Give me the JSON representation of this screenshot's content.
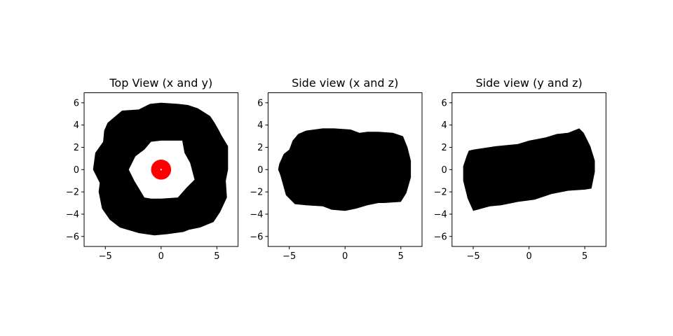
{
  "chart_data": [
    {
      "type": "scatter",
      "title": "Top View (x and y)",
      "xlabel": "",
      "ylabel": "",
      "xlim": [
        -6.9,
        6.9
      ],
      "ylim": [
        -6.9,
        6.9
      ],
      "xticks": [
        -5,
        0,
        5
      ],
      "yticks": [
        -6,
        -4,
        -2,
        0,
        2,
        4,
        6
      ],
      "xtick_labels": [
        "−5",
        "0",
        "5"
      ],
      "ytick_labels": [
        "−6",
        "−4",
        "−2",
        "0",
        "2",
        "4",
        "6"
      ],
      "grid": false,
      "series": [
        {
          "color": "#000000",
          "fill": "ring",
          "outer": [
            [
              0,
              6.0
            ],
            [
              1.5,
              5.9
            ],
            [
              2.4,
              5.8
            ],
            [
              3.3,
              5.5
            ],
            [
              4.4,
              4.8
            ],
            [
              4.8,
              4.2
            ],
            [
              5.2,
              3.5
            ],
            [
              5.4,
              3.1
            ],
            [
              6.0,
              2.1
            ],
            [
              6.0,
              0.0
            ],
            [
              5.8,
              -1.0
            ],
            [
              5.9,
              -2.5
            ],
            [
              5.3,
              -3.8
            ],
            [
              4.7,
              -4.7
            ],
            [
              3.5,
              -5.2
            ],
            [
              2.5,
              -5.4
            ],
            [
              2.0,
              -5.6
            ],
            [
              0.5,
              -5.8
            ],
            [
              -0.6,
              -5.9
            ],
            [
              -2.0,
              -5.7
            ],
            [
              -3.7,
              -5.2
            ],
            [
              -4.6,
              -4.5
            ],
            [
              -5.3,
              -3.5
            ],
            [
              -5.6,
              -2.0
            ],
            [
              -5.5,
              -1.2
            ],
            [
              -6.1,
              0.0
            ],
            [
              -5.9,
              1.5
            ],
            [
              -5.2,
              2.5
            ],
            [
              -5.1,
              3.5
            ],
            [
              -4.8,
              4.2
            ],
            [
              -3.5,
              5.3
            ],
            [
              -2.0,
              5.4
            ],
            [
              -1.0,
              5.9
            ]
          ],
          "inner": [
            [
              0,
              2.6
            ],
            [
              1.2,
              2.6
            ],
            [
              1.9,
              2.6
            ],
            [
              2.1,
              1.5
            ],
            [
              2.6,
              0.6
            ],
            [
              3.0,
              -0.9
            ],
            [
              2.3,
              -1.6
            ],
            [
              1.5,
              -2.5
            ],
            [
              0.0,
              -2.6
            ],
            [
              -0.9,
              -2.6
            ],
            [
              -1.5,
              -2.5
            ],
            [
              -1.8,
              -2.0
            ],
            [
              -2.4,
              -1.0
            ],
            [
              -2.9,
              0.0
            ],
            [
              -2.3,
              1.2
            ],
            [
              -1.5,
              1.8
            ],
            [
              -0.9,
              2.5
            ]
          ]
        },
        {
          "color": "#ff0000",
          "fill": "disc",
          "center": [
            0,
            0
          ],
          "radius": 0.9
        }
      ]
    },
    {
      "type": "scatter",
      "title": "Side view (x and z)",
      "xlabel": "",
      "ylabel": "",
      "xlim": [
        -6.9,
        6.9
      ],
      "ylim": [
        -6.9,
        6.9
      ],
      "xticks": [
        -5,
        0,
        5
      ],
      "yticks": [
        -6,
        -4,
        -2,
        0,
        2,
        4,
        6
      ],
      "xtick_labels": [
        "−5",
        "0",
        "5"
      ],
      "ytick_labels": [
        "−6",
        "−4",
        "−2",
        "0",
        "2",
        "4",
        "6"
      ],
      "grid": false,
      "series": [
        {
          "color": "#000000",
          "fill": "blob",
          "outline": [
            [
              -5.5,
              1.4
            ],
            [
              -5.0,
              1.8
            ],
            [
              -4.7,
              2.6
            ],
            [
              -4.2,
              3.2
            ],
            [
              -3.5,
              3.5
            ],
            [
              -2.0,
              3.7
            ],
            [
              -1.0,
              3.7
            ],
            [
              0.5,
              3.6
            ],
            [
              1.3,
              3.3
            ],
            [
              2.0,
              3.4
            ],
            [
              3.0,
              3.4
            ],
            [
              4.3,
              3.3
            ],
            [
              5.2,
              3.0
            ],
            [
              5.6,
              2.0
            ],
            [
              5.9,
              0.8
            ],
            [
              5.9,
              -0.7
            ],
            [
              5.5,
              -2.1
            ],
            [
              5.0,
              -2.9
            ],
            [
              3.5,
              -3.0
            ],
            [
              3.0,
              -3.0
            ],
            [
              2.0,
              -3.2
            ],
            [
              1.0,
              -3.5
            ],
            [
              0.0,
              -3.7
            ],
            [
              -1.2,
              -3.6
            ],
            [
              -2.0,
              -3.3
            ],
            [
              -3.5,
              -3.2
            ],
            [
              -4.5,
              -3.1
            ],
            [
              -5.3,
              -2.3
            ],
            [
              -5.8,
              -0.5
            ],
            [
              -6.0,
              0.0
            ],
            [
              -5.9,
              0.5
            ]
          ]
        }
      ]
    },
    {
      "type": "scatter",
      "title": "Side view (y and z)",
      "xlabel": "",
      "ylabel": "",
      "xlim": [
        -6.9,
        6.9
      ],
      "ylim": [
        -6.9,
        6.9
      ],
      "xticks": [
        -5,
        0,
        5
      ],
      "yticks": [
        -6,
        -4,
        -2,
        0,
        2,
        4,
        6
      ],
      "xtick_labels": [
        "−5",
        "0",
        "5"
      ],
      "ytick_labels": [
        "−6",
        "−4",
        "−2",
        "0",
        "2",
        "4",
        "6"
      ],
      "grid": false,
      "series": [
        {
          "color": "#000000",
          "fill": "blob",
          "outline": [
            [
              -5.4,
              1.7
            ],
            [
              -5.0,
              1.8
            ],
            [
              -3.0,
              2.1
            ],
            [
              -1.0,
              2.3
            ],
            [
              0.0,
              2.6
            ],
            [
              1.5,
              2.9
            ],
            [
              2.5,
              3.2
            ],
            [
              3.5,
              3.3
            ],
            [
              4.5,
              3.7
            ],
            [
              4.9,
              3.3
            ],
            [
              5.5,
              2.1
            ],
            [
              5.9,
              0.8
            ],
            [
              5.9,
              -0.2
            ],
            [
              5.6,
              -1.7
            ],
            [
              5.0,
              -1.8
            ],
            [
              3.5,
              -1.9
            ],
            [
              2.0,
              -2.2
            ],
            [
              0.5,
              -2.7
            ],
            [
              -1.0,
              -2.9
            ],
            [
              -2.5,
              -3.2
            ],
            [
              -3.5,
              -3.3
            ],
            [
              -5.0,
              -3.7
            ],
            [
              -5.5,
              -2.6
            ],
            [
              -5.9,
              -1.0
            ],
            [
              -5.9,
              0.3
            ],
            [
              -5.6,
              1.2
            ]
          ]
        }
      ]
    }
  ]
}
